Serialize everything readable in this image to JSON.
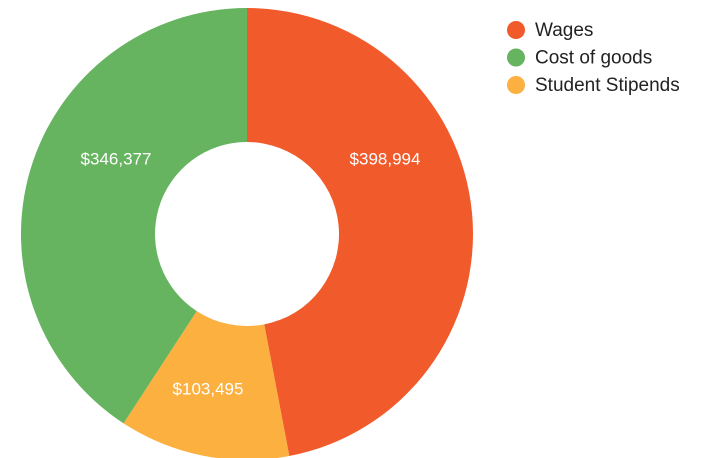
{
  "chart_data": {
    "type": "donut",
    "categories": [
      "Wages",
      "Cost of goods",
      "Student Stipends"
    ],
    "values": [
      398994,
      346377,
      103495
    ],
    "value_labels": [
      "$398,994",
      "$346,377",
      "$103,495"
    ],
    "colors": [
      "#f15a2b",
      "#66b360",
      "#fbb040"
    ],
    "legend": "top-right"
  }
}
